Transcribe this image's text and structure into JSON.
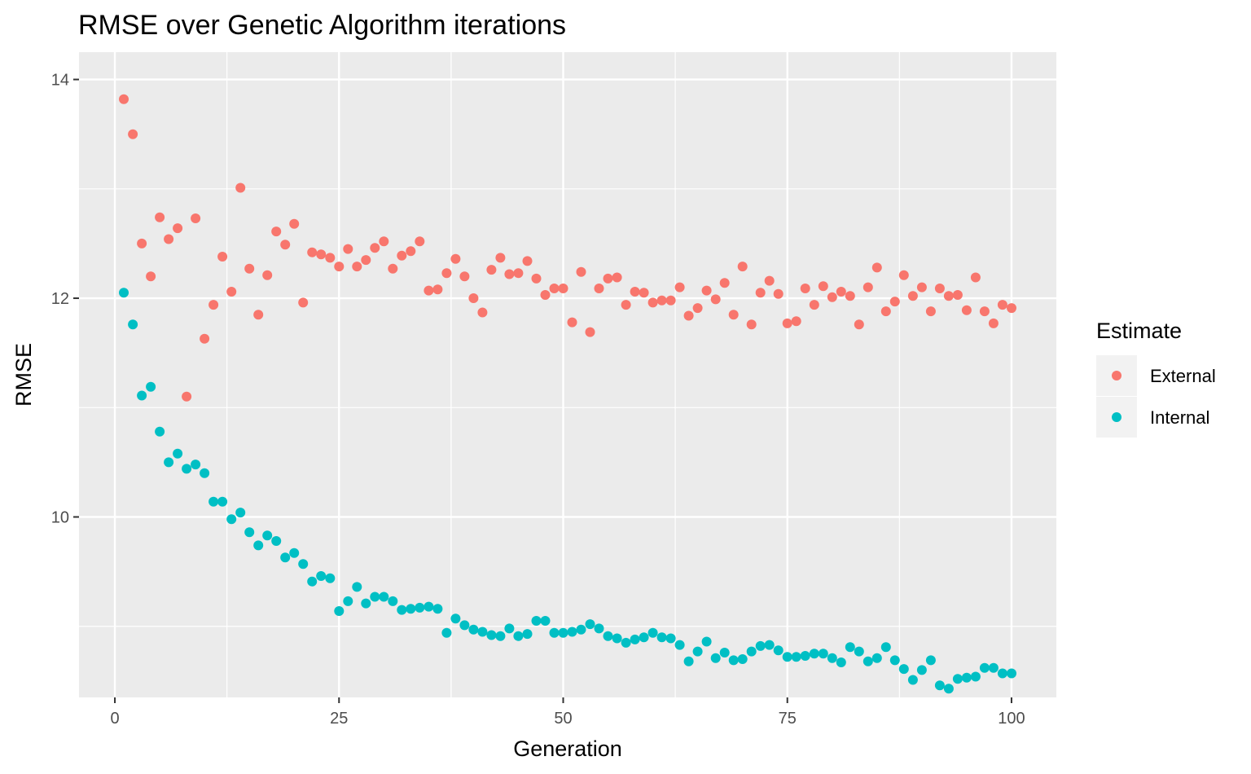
{
  "chart_data": {
    "type": "scatter",
    "title": "RMSE over Genetic Algorithm iterations",
    "xlabel": "Generation",
    "ylabel": "RMSE",
    "xlim": [
      -4,
      105
    ],
    "ylim": [
      8.35,
      14.25
    ],
    "x_ticks": [
      0,
      25,
      50,
      75,
      100
    ],
    "x_minor_ticks": [
      12.5,
      37.5,
      62.5,
      87.5
    ],
    "y_ticks": [
      10,
      12,
      14
    ],
    "y_minor_ticks": [
      9,
      11,
      13
    ],
    "x_tick_labels": [
      "0",
      "25",
      "50",
      "75",
      "100"
    ],
    "y_tick_labels": [
      "10",
      "12",
      "14"
    ],
    "grid": true,
    "background": "#ebebeb",
    "legend": {
      "title": "Estimate",
      "placement": "right",
      "entries": [
        "External",
        "Internal"
      ]
    },
    "series": [
      {
        "name": "External",
        "color": "#f8766d",
        "x": [
          1,
          2,
          3,
          4,
          5,
          6,
          7,
          8,
          9,
          10,
          11,
          12,
          13,
          14,
          15,
          16,
          17,
          18,
          19,
          20,
          21,
          22,
          23,
          24,
          25,
          26,
          27,
          28,
          29,
          30,
          31,
          32,
          33,
          34,
          35,
          36,
          37,
          38,
          39,
          40,
          41,
          42,
          43,
          44,
          45,
          46,
          47,
          48,
          49,
          50,
          51,
          52,
          53,
          54,
          55,
          56,
          57,
          58,
          59,
          60,
          61,
          62,
          63,
          64,
          65,
          66,
          67,
          68,
          69,
          70,
          71,
          72,
          73,
          74,
          75,
          76,
          77,
          78,
          79,
          80,
          81,
          82,
          83,
          84,
          85,
          86,
          87,
          88,
          89,
          90,
          91,
          92,
          93,
          94,
          95,
          96,
          97,
          98,
          99,
          100
        ],
        "y": [
          13.82,
          13.5,
          12.5,
          12.2,
          12.74,
          12.54,
          12.64,
          11.1,
          12.73,
          11.63,
          11.94,
          12.38,
          12.06,
          13.01,
          12.27,
          11.85,
          12.21,
          12.61,
          12.49,
          12.68,
          11.96,
          12.42,
          12.4,
          12.37,
          12.29,
          12.45,
          12.29,
          12.35,
          12.46,
          12.52,
          12.27,
          12.39,
          12.43,
          12.52,
          12.07,
          12.08,
          12.23,
          12.36,
          12.2,
          12.0,
          11.87,
          12.26,
          12.37,
          12.22,
          12.23,
          12.34,
          12.18,
          12.03,
          12.09,
          12.09,
          11.78,
          12.24,
          11.69,
          12.09,
          12.18,
          12.19,
          11.94,
          12.06,
          12.05,
          11.96,
          11.98,
          11.98,
          12.1,
          11.84,
          11.91,
          12.07,
          11.99,
          12.14,
          11.85,
          12.29,
          11.76,
          12.05,
          12.16,
          12.04,
          11.77,
          11.79,
          12.09,
          11.94,
          12.11,
          12.01,
          12.06,
          12.02,
          11.76,
          12.1,
          12.28,
          11.88,
          11.97,
          12.21,
          12.02,
          12.1,
          11.88,
          12.09,
          12.02,
          12.03,
          11.89,
          12.19,
          11.88,
          11.77,
          11.94,
          11.91
        ]
      },
      {
        "name": "Internal",
        "color": "#00bfc4",
        "x": [
          1,
          2,
          3,
          4,
          5,
          6,
          7,
          8,
          9,
          10,
          11,
          12,
          13,
          14,
          15,
          16,
          17,
          18,
          19,
          20,
          21,
          22,
          23,
          24,
          25,
          26,
          27,
          28,
          29,
          30,
          31,
          32,
          33,
          34,
          35,
          36,
          37,
          38,
          39,
          40,
          41,
          42,
          43,
          44,
          45,
          46,
          47,
          48,
          49,
          50,
          51,
          52,
          53,
          54,
          55,
          56,
          57,
          58,
          59,
          60,
          61,
          62,
          63,
          64,
          65,
          66,
          67,
          68,
          69,
          70,
          71,
          72,
          73,
          74,
          75,
          76,
          77,
          78,
          79,
          80,
          81,
          82,
          83,
          84,
          85,
          86,
          87,
          88,
          89,
          90,
          91,
          92,
          93,
          94,
          95,
          96,
          97,
          98,
          99,
          100
        ],
        "y": [
          12.05,
          11.76,
          11.11,
          11.19,
          10.78,
          10.5,
          10.58,
          10.44,
          10.48,
          10.4,
          10.14,
          10.14,
          9.98,
          10.04,
          9.86,
          9.74,
          9.83,
          9.78,
          9.63,
          9.67,
          9.57,
          9.41,
          9.46,
          9.44,
          9.14,
          9.23,
          9.36,
          9.21,
          9.27,
          9.27,
          9.23,
          9.15,
          9.16,
          9.17,
          9.18,
          9.16,
          8.94,
          9.07,
          9.01,
          8.97,
          8.95,
          8.92,
          8.91,
          8.98,
          8.91,
          8.93,
          9.05,
          9.05,
          8.94,
          8.94,
          8.95,
          8.97,
          9.02,
          8.98,
          8.91,
          8.89,
          8.85,
          8.88,
          8.9,
          8.94,
          8.9,
          8.89,
          8.83,
          8.68,
          8.77,
          8.86,
          8.71,
          8.76,
          8.69,
          8.7,
          8.77,
          8.82,
          8.83,
          8.78,
          8.72,
          8.72,
          8.73,
          8.75,
          8.75,
          8.71,
          8.67,
          8.81,
          8.77,
          8.68,
          8.71,
          8.81,
          8.69,
          8.61,
          8.51,
          8.6,
          8.69,
          8.46,
          8.43,
          8.52,
          8.53,
          8.54,
          8.62,
          8.62,
          8.57,
          8.57
        ]
      }
    ]
  }
}
